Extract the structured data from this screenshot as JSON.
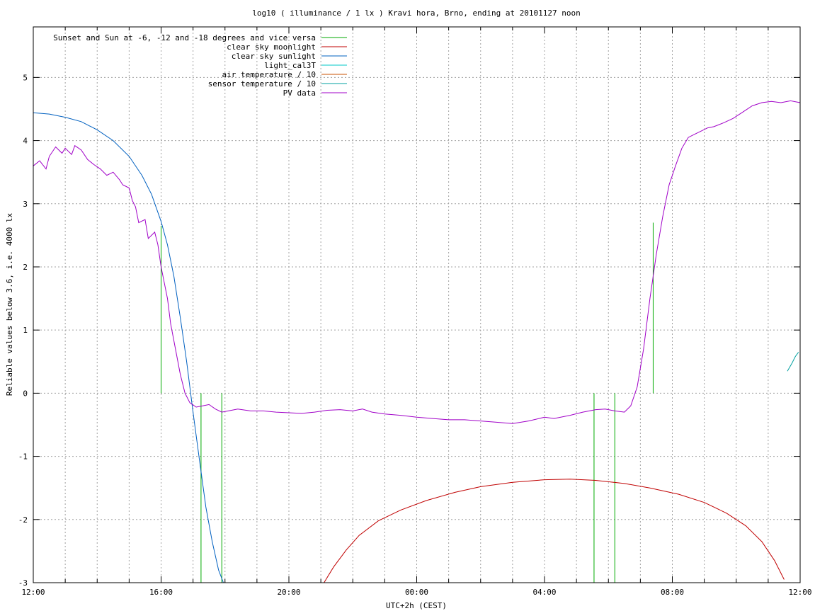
{
  "chart_data": {
    "type": "line",
    "title": "log10 ( illuminance / 1 lx ) Kravi hora, Brno, ending at 20101127 noon",
    "xlabel": "UTC+2h (CEST)",
    "ylabel": "Reliable values below 3.6, i.e. 4000 lx",
    "xlim": [
      0,
      24
    ],
    "ylim": [
      -3,
      5.8
    ],
    "x_unit": "hours since 12:00 (26 Nov 2010, UTC+2h)",
    "x_ticks": [
      {
        "x": 0,
        "label": "12:00"
      },
      {
        "x": 4,
        "label": "16:00"
      },
      {
        "x": 8,
        "label": "20:00"
      },
      {
        "x": 12,
        "label": "00:00"
      },
      {
        "x": 16,
        "label": "04:00"
      },
      {
        "x": 20,
        "label": "08:00"
      },
      {
        "x": 24,
        "label": "12:00"
      }
    ],
    "y_ticks": [
      {
        "y": -3,
        "label": "-3"
      },
      {
        "y": -2,
        "label": "-2"
      },
      {
        "y": -1,
        "label": "-1"
      },
      {
        "y": 0,
        "label": "0"
      },
      {
        "y": 1,
        "label": "1"
      },
      {
        "y": 2,
        "label": "2"
      },
      {
        "y": 3,
        "label": "3"
      },
      {
        "y": 4,
        "label": "4"
      },
      {
        "y": 5,
        "label": "5"
      }
    ],
    "grid": true,
    "legend_position": "top-left",
    "series": [
      {
        "name": "Sunset and Sun at -6, -12 and -18 degrees and vice versa",
        "color": "#00aa00",
        "kind": "vlines",
        "segments": [
          {
            "x": 4.0,
            "y0": 0,
            "y1": 2.65
          },
          {
            "x": 5.25,
            "y0": -3,
            "y1": 0
          },
          {
            "x": 5.9,
            "y0": -3,
            "y1": 0
          },
          {
            "x": 17.55,
            "y0": -3,
            "y1": 0
          },
          {
            "x": 18.2,
            "y0": -3,
            "y1": 0
          },
          {
            "x": 19.4,
            "y0": 0,
            "y1": 2.7
          }
        ]
      },
      {
        "name": "clear sky moonlight",
        "color": "#c00000",
        "kind": "line",
        "points": [
          [
            9.1,
            -3.0
          ],
          [
            9.4,
            -2.75
          ],
          [
            9.8,
            -2.48
          ],
          [
            10.2,
            -2.25
          ],
          [
            10.8,
            -2.02
          ],
          [
            11.5,
            -1.85
          ],
          [
            12.3,
            -1.7
          ],
          [
            13.2,
            -1.57
          ],
          [
            14.0,
            -1.48
          ],
          [
            15.0,
            -1.41
          ],
          [
            16.0,
            -1.37
          ],
          [
            16.8,
            -1.36
          ],
          [
            17.6,
            -1.38
          ],
          [
            18.5,
            -1.43
          ],
          [
            19.3,
            -1.5
          ],
          [
            20.2,
            -1.6
          ],
          [
            21.0,
            -1.73
          ],
          [
            21.7,
            -1.9
          ],
          [
            22.3,
            -2.1
          ],
          [
            22.8,
            -2.35
          ],
          [
            23.2,
            -2.65
          ],
          [
            23.5,
            -2.95
          ]
        ]
      },
      {
        "name": "clear sky sunlight",
        "color": "#0060c0",
        "kind": "line",
        "points": [
          [
            0.0,
            4.44
          ],
          [
            0.5,
            4.42
          ],
          [
            1.0,
            4.37
          ],
          [
            1.5,
            4.3
          ],
          [
            2.0,
            4.17
          ],
          [
            2.5,
            4.0
          ],
          [
            3.0,
            3.75
          ],
          [
            3.4,
            3.45
          ],
          [
            3.7,
            3.15
          ],
          [
            4.0,
            2.72
          ],
          [
            4.2,
            2.35
          ],
          [
            4.4,
            1.85
          ],
          [
            4.6,
            1.2
          ],
          [
            4.8,
            0.5
          ],
          [
            5.0,
            -0.3
          ],
          [
            5.2,
            -1.05
          ],
          [
            5.4,
            -1.8
          ],
          [
            5.6,
            -2.35
          ],
          [
            5.8,
            -2.8
          ],
          [
            5.95,
            -3.0
          ]
        ]
      },
      {
        "name": "light_cal3T",
        "color": "#00c8c8",
        "kind": "line",
        "points": []
      },
      {
        "name": "air temperature / 10",
        "color": "#c85000",
        "kind": "line",
        "points": []
      },
      {
        "name": "sensor temperature / 10",
        "color": "#00a0a0",
        "kind": "line",
        "points": [
          [
            23.6,
            0.35
          ],
          [
            23.75,
            0.48
          ],
          [
            23.85,
            0.58
          ],
          [
            23.95,
            0.65
          ]
        ]
      },
      {
        "name": "PV data",
        "color": "#a000c8",
        "kind": "line",
        "points": [
          [
            0.0,
            3.6
          ],
          [
            0.2,
            3.68
          ],
          [
            0.4,
            3.55
          ],
          [
            0.5,
            3.75
          ],
          [
            0.7,
            3.9
          ],
          [
            0.9,
            3.8
          ],
          [
            1.0,
            3.88
          ],
          [
            1.2,
            3.78
          ],
          [
            1.3,
            3.92
          ],
          [
            1.5,
            3.85
          ],
          [
            1.7,
            3.7
          ],
          [
            1.9,
            3.62
          ],
          [
            2.1,
            3.55
          ],
          [
            2.3,
            3.45
          ],
          [
            2.5,
            3.5
          ],
          [
            2.7,
            3.38
          ],
          [
            2.8,
            3.3
          ],
          [
            3.0,
            3.25
          ],
          [
            3.1,
            3.05
          ],
          [
            3.2,
            2.95
          ],
          [
            3.3,
            2.7
          ],
          [
            3.5,
            2.75
          ],
          [
            3.6,
            2.45
          ],
          [
            3.8,
            2.55
          ],
          [
            3.9,
            2.35
          ],
          [
            4.0,
            2.0
          ],
          [
            4.1,
            1.75
          ],
          [
            4.2,
            1.5
          ],
          [
            4.3,
            1.1
          ],
          [
            4.45,
            0.7
          ],
          [
            4.6,
            0.3
          ],
          [
            4.75,
            0.0
          ],
          [
            4.9,
            -0.15
          ],
          [
            5.1,
            -0.22
          ],
          [
            5.3,
            -0.2
          ],
          [
            5.5,
            -0.18
          ],
          [
            5.7,
            -0.25
          ],
          [
            5.9,
            -0.3
          ],
          [
            6.1,
            -0.28
          ],
          [
            6.4,
            -0.25
          ],
          [
            6.8,
            -0.28
          ],
          [
            7.2,
            -0.28
          ],
          [
            7.6,
            -0.3
          ],
          [
            8.0,
            -0.31
          ],
          [
            8.4,
            -0.32
          ],
          [
            8.8,
            -0.3
          ],
          [
            9.2,
            -0.27
          ],
          [
            9.6,
            -0.26
          ],
          [
            10.0,
            -0.28
          ],
          [
            10.3,
            -0.25
          ],
          [
            10.6,
            -0.3
          ],
          [
            11.0,
            -0.33
          ],
          [
            11.5,
            -0.35
          ],
          [
            12.0,
            -0.38
          ],
          [
            12.5,
            -0.4
          ],
          [
            13.0,
            -0.42
          ],
          [
            13.5,
            -0.42
          ],
          [
            14.0,
            -0.44
          ],
          [
            14.5,
            -0.46
          ],
          [
            15.0,
            -0.48
          ],
          [
            15.5,
            -0.44
          ],
          [
            16.0,
            -0.38
          ],
          [
            16.3,
            -0.4
          ],
          [
            16.8,
            -0.35
          ],
          [
            17.2,
            -0.3
          ],
          [
            17.6,
            -0.26
          ],
          [
            17.9,
            -0.25
          ],
          [
            18.2,
            -0.28
          ],
          [
            18.5,
            -0.3
          ],
          [
            18.7,
            -0.2
          ],
          [
            18.9,
            0.1
          ],
          [
            19.1,
            0.7
          ],
          [
            19.3,
            1.5
          ],
          [
            19.5,
            2.2
          ],
          [
            19.7,
            2.8
          ],
          [
            19.9,
            3.3
          ],
          [
            20.1,
            3.6
          ],
          [
            20.3,
            3.88
          ],
          [
            20.5,
            4.05
          ],
          [
            20.7,
            4.1
          ],
          [
            20.9,
            4.15
          ],
          [
            21.1,
            4.2
          ],
          [
            21.3,
            4.22
          ],
          [
            21.6,
            4.28
          ],
          [
            21.9,
            4.35
          ],
          [
            22.2,
            4.45
          ],
          [
            22.5,
            4.55
          ],
          [
            22.8,
            4.6
          ],
          [
            23.1,
            4.62
          ],
          [
            23.4,
            4.6
          ],
          [
            23.7,
            4.63
          ],
          [
            24.0,
            4.6
          ]
        ]
      }
    ]
  }
}
